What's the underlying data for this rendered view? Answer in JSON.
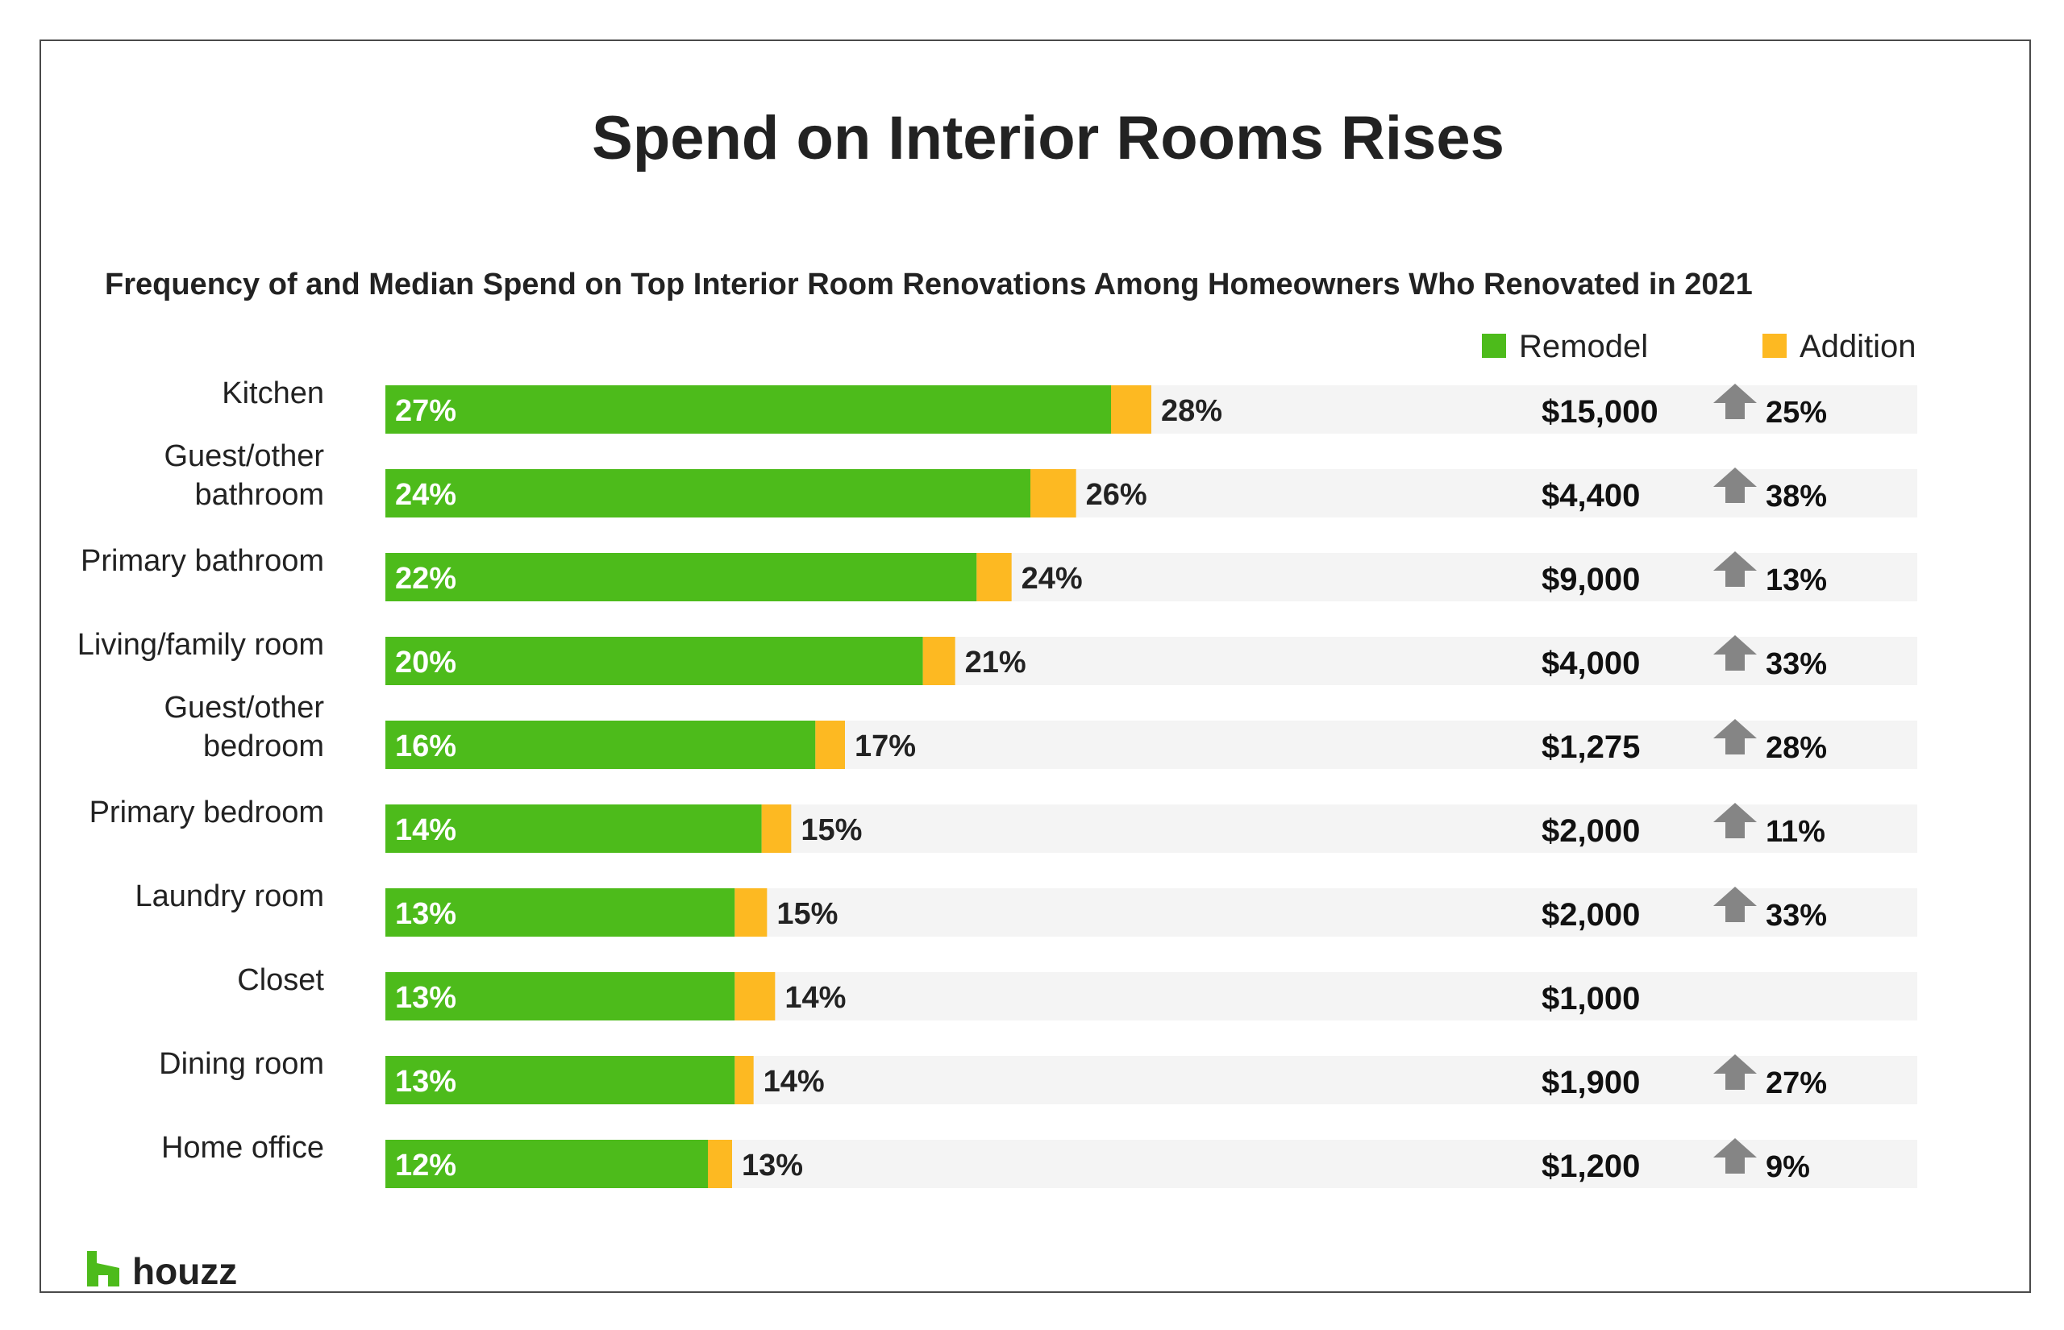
{
  "title": "Spend on Interior Rooms Rises",
  "subtitle": "Frequency of and Median Spend on Top Interior Room Renovations Among Homeowners Who Renovated in 2021",
  "brand": {
    "name": "houzz",
    "icon": "houzz-logo-icon",
    "color": "#4dbb1b"
  },
  "colors": {
    "remodel": "#4dbb1b",
    "addition": "#fdb922",
    "track": "#f4f4f4",
    "arrow": "#858585"
  },
  "chart_data": {
    "type": "bar",
    "orientation": "horizontal",
    "stacked": true,
    "title": "Spend on Interior Rooms Rises",
    "subtitle": "Frequency of and Median Spend on Top Interior Room Renovations Among Homeowners Who Renovated in 2021",
    "legend": [
      "Remodel",
      "Addition"
    ],
    "legend_position": "top-right",
    "xlim": [
      0,
      57
    ],
    "grid": false,
    "categories": [
      [
        "Kitchen"
      ],
      [
        "Guest/other",
        "bathroom"
      ],
      [
        "Primary bathroom"
      ],
      [
        "Living/family room"
      ],
      [
        "Guest/other",
        "bedroom"
      ],
      [
        "Primary bedroom"
      ],
      [
        "Laundry room"
      ],
      [
        "Closet"
      ],
      [
        "Dining room"
      ],
      [
        "Home office"
      ]
    ],
    "series": [
      {
        "name": "Remodel",
        "values": [
          27,
          24,
          22,
          20,
          16,
          14,
          13,
          13,
          13,
          12
        ],
        "labels": [
          "27%",
          "24%",
          "22%",
          "20%",
          "16%",
          "14%",
          "13%",
          "13%",
          "13%",
          "12%"
        ]
      },
      {
        "name": "Addition",
        "values": [
          1.5,
          1.7,
          1.3,
          1.2,
          1.1,
          1.1,
          1.2,
          1.5,
          0.7,
          0.9
        ]
      }
    ],
    "totals": [
      "28%",
      "26%",
      "24%",
      "21%",
      "17%",
      "15%",
      "15%",
      "14%",
      "14%",
      "13%"
    ],
    "median_spend": [
      "$15,000",
      "$4,400",
      "$9,000",
      "$4,000",
      "$1,275",
      "$2,000",
      "$2,000",
      "$1,000",
      "$1,900",
      "$1,200"
    ],
    "spend_change": [
      "25%",
      "38%",
      "13%",
      "33%",
      "28%",
      "11%",
      "33%",
      "",
      "27%",
      "9%"
    ],
    "change_icon": "up-arrow-icon"
  }
}
